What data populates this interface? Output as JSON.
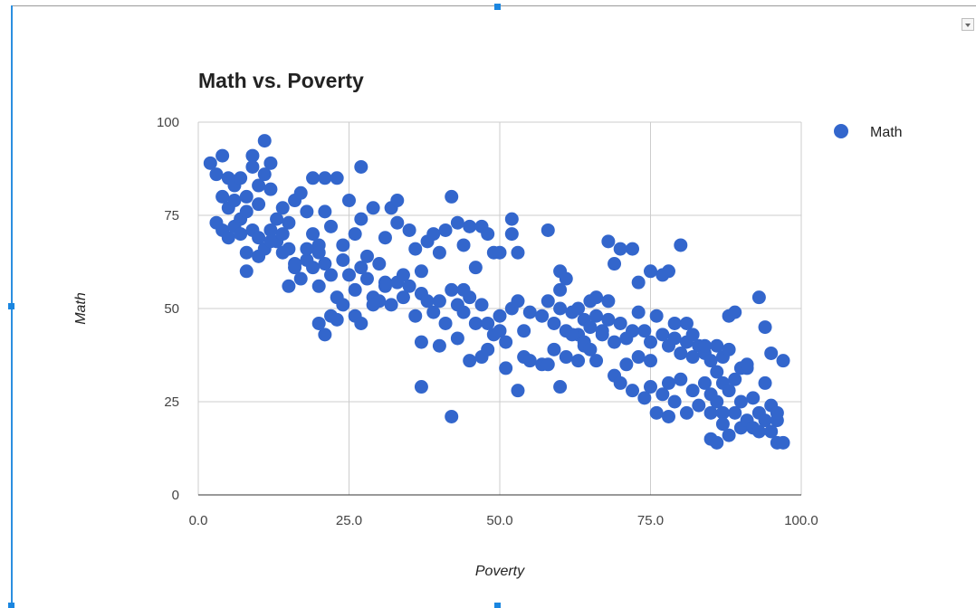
{
  "colors": {
    "series": "#3366cc",
    "grid": "#cccccc",
    "selection": "#1a86e0"
  },
  "toolbar": {
    "menu_icon": "chevron-down-icon"
  },
  "chart_data": {
    "type": "scatter",
    "title": "Math vs. Poverty",
    "xlabel": "Poverty",
    "ylabel": "Math",
    "xlim": [
      0,
      100
    ],
    "ylim": [
      0,
      100
    ],
    "x_ticks": [
      "0.0",
      "25.0",
      "50.0",
      "75.0",
      "100.0"
    ],
    "y_ticks": [
      "0",
      "25",
      "50",
      "75",
      "100"
    ],
    "grid": true,
    "legend": "right",
    "series": [
      {
        "name": "Math",
        "points": [
          [
            2,
            89
          ],
          [
            3,
            86
          ],
          [
            4,
            91
          ],
          [
            4,
            80
          ],
          [
            5,
            85
          ],
          [
            5,
            77
          ],
          [
            6,
            83
          ],
          [
            6,
            79
          ],
          [
            7,
            85
          ],
          [
            7,
            74
          ],
          [
            8,
            80
          ],
          [
            8,
            76
          ],
          [
            9,
            91
          ],
          [
            9,
            88
          ],
          [
            10,
            83
          ],
          [
            10,
            78
          ],
          [
            11,
            95
          ],
          [
            11,
            86
          ],
          [
            12,
            82
          ],
          [
            12,
            89
          ],
          [
            13,
            74
          ],
          [
            14,
            77
          ],
          [
            15,
            73
          ],
          [
            15,
            66
          ],
          [
            16,
            79
          ],
          [
            17,
            81
          ],
          [
            18,
            76
          ],
          [
            19,
            85
          ],
          [
            19,
            70
          ],
          [
            20,
            67
          ],
          [
            21,
            85
          ],
          [
            21,
            76
          ],
          [
            22,
            72
          ],
          [
            23,
            85
          ],
          [
            24,
            67
          ],
          [
            24,
            63
          ],
          [
            25,
            79
          ],
          [
            26,
            70
          ],
          [
            27,
            88
          ],
          [
            27,
            74
          ],
          [
            28,
            64
          ],
          [
            29,
            77
          ],
          [
            30,
            62
          ],
          [
            31,
            69
          ],
          [
            32,
            77
          ],
          [
            33,
            73
          ],
          [
            33,
            79
          ],
          [
            35,
            71
          ],
          [
            36,
            66
          ],
          [
            37,
            60
          ],
          [
            38,
            68
          ],
          [
            39,
            70
          ],
          [
            40,
            65
          ],
          [
            41,
            71
          ],
          [
            42,
            80
          ],
          [
            43,
            73
          ],
          [
            44,
            67
          ],
          [
            45,
            72
          ],
          [
            46,
            61
          ],
          [
            47,
            72
          ],
          [
            48,
            70
          ],
          [
            49,
            65
          ],
          [
            50,
            65
          ],
          [
            52,
            74
          ],
          [
            52,
            70
          ],
          [
            53,
            65
          ],
          [
            58,
            71
          ],
          [
            3,
            73
          ],
          [
            4,
            71
          ],
          [
            5,
            69
          ],
          [
            6,
            72
          ],
          [
            7,
            70
          ],
          [
            8,
            65
          ],
          [
            9,
            71
          ],
          [
            10,
            69
          ],
          [
            11,
            66
          ],
          [
            12,
            71
          ],
          [
            13,
            68
          ],
          [
            14,
            65
          ],
          [
            15,
            56
          ],
          [
            16,
            61
          ],
          [
            17,
            58
          ],
          [
            18,
            63
          ],
          [
            19,
            61
          ],
          [
            20,
            56
          ],
          [
            20,
            65
          ],
          [
            21,
            62
          ],
          [
            22,
            59
          ],
          [
            23,
            53
          ],
          [
            24,
            51
          ],
          [
            25,
            59
          ],
          [
            26,
            55
          ],
          [
            27,
            61
          ],
          [
            28,
            58
          ],
          [
            29,
            53
          ],
          [
            30,
            52
          ],
          [
            31,
            56
          ],
          [
            32,
            51
          ],
          [
            33,
            57
          ],
          [
            34,
            53
          ],
          [
            35,
            56
          ],
          [
            36,
            48
          ],
          [
            37,
            54
          ],
          [
            38,
            52
          ],
          [
            39,
            49
          ],
          [
            40,
            52
          ],
          [
            41,
            46
          ],
          [
            42,
            55
          ],
          [
            43,
            51
          ],
          [
            44,
            49
          ],
          [
            45,
            53
          ],
          [
            46,
            46
          ],
          [
            47,
            51
          ],
          [
            48,
            46
          ],
          [
            49,
            43
          ],
          [
            50,
            48
          ],
          [
            51,
            41
          ],
          [
            52,
            50
          ],
          [
            53,
            52
          ],
          [
            54,
            44
          ],
          [
            55,
            49
          ],
          [
            57,
            48
          ],
          [
            58,
            52
          ],
          [
            59,
            46
          ],
          [
            60,
            55
          ],
          [
            60,
            50
          ],
          [
            61,
            44
          ],
          [
            62,
            49
          ],
          [
            63,
            43
          ],
          [
            64,
            47
          ],
          [
            64,
            41
          ],
          [
            65,
            52
          ],
          [
            65,
            45
          ],
          [
            66,
            48
          ],
          [
            67,
            43
          ],
          [
            68,
            47
          ],
          [
            69,
            41
          ],
          [
            70,
            46
          ],
          [
            71,
            42
          ],
          [
            72,
            44
          ],
          [
            73,
            49
          ],
          [
            74,
            44
          ],
          [
            75,
            41
          ],
          [
            76,
            48
          ],
          [
            77,
            43
          ],
          [
            78,
            40
          ],
          [
            79,
            42
          ],
          [
            80,
            38
          ],
          [
            81,
            41
          ],
          [
            82,
            37
          ],
          [
            83,
            40
          ],
          [
            84,
            38
          ],
          [
            85,
            36
          ],
          [
            86,
            40
          ],
          [
            87,
            37
          ],
          [
            88,
            39
          ],
          [
            8,
            60
          ],
          [
            10,
            64
          ],
          [
            12,
            68
          ],
          [
            14,
            70
          ],
          [
            16,
            62
          ],
          [
            18,
            66
          ],
          [
            20,
            46
          ],
          [
            21,
            43
          ],
          [
            22,
            48
          ],
          [
            23,
            47
          ],
          [
            26,
            48
          ],
          [
            27,
            46
          ],
          [
            29,
            51
          ],
          [
            31,
            57
          ],
          [
            34,
            59
          ],
          [
            37,
            41
          ],
          [
            37,
            29
          ],
          [
            40,
            40
          ],
          [
            42,
            21
          ],
          [
            43,
            42
          ],
          [
            44,
            55
          ],
          [
            45,
            36
          ],
          [
            47,
            37
          ],
          [
            48,
            39
          ],
          [
            50,
            44
          ],
          [
            51,
            34
          ],
          [
            53,
            28
          ],
          [
            54,
            37
          ],
          [
            55,
            36
          ],
          [
            57,
            35
          ],
          [
            59,
            39
          ],
          [
            60,
            29
          ],
          [
            61,
            37
          ],
          [
            62,
            43
          ],
          [
            63,
            36
          ],
          [
            64,
            40
          ],
          [
            65,
            39
          ],
          [
            66,
            36
          ],
          [
            67,
            44
          ],
          [
            68,
            52
          ],
          [
            69,
            32
          ],
          [
            70,
            30
          ],
          [
            71,
            35
          ],
          [
            72,
            28
          ],
          [
            73,
            37
          ],
          [
            74,
            26
          ],
          [
            75,
            29
          ],
          [
            75,
            36
          ],
          [
            76,
            22
          ],
          [
            77,
            27
          ],
          [
            78,
            21
          ],
          [
            78,
            30
          ],
          [
            79,
            25
          ],
          [
            80,
            31
          ],
          [
            81,
            22
          ],
          [
            82,
            28
          ],
          [
            83,
            24
          ],
          [
            84,
            30
          ],
          [
            85,
            22
          ],
          [
            85,
            27
          ],
          [
            86,
            33
          ],
          [
            86,
            25
          ],
          [
            87,
            30
          ],
          [
            87,
            22
          ],
          [
            88,
            28
          ],
          [
            88,
            16
          ],
          [
            89,
            22
          ],
          [
            89,
            31
          ],
          [
            90,
            18
          ],
          [
            90,
            25
          ],
          [
            91,
            20
          ],
          [
            91,
            34
          ],
          [
            92,
            18
          ],
          [
            92,
            26
          ],
          [
            93,
            17
          ],
          [
            93,
            22
          ],
          [
            94,
            20
          ],
          [
            94,
            30
          ],
          [
            95,
            17
          ],
          [
            95,
            24
          ],
          [
            96,
            20
          ],
          [
            96,
            14
          ],
          [
            97,
            36
          ],
          [
            58,
            35
          ],
          [
            60,
            60
          ],
          [
            61,
            58
          ],
          [
            63,
            50
          ],
          [
            66,
            53
          ],
          [
            68,
            68
          ],
          [
            69,
            62
          ],
          [
            70,
            66
          ],
          [
            72,
            66
          ],
          [
            73,
            57
          ],
          [
            75,
            60
          ],
          [
            77,
            59
          ],
          [
            78,
            60
          ],
          [
            79,
            46
          ],
          [
            80,
            67
          ],
          [
            81,
            46
          ],
          [
            82,
            43
          ],
          [
            84,
            40
          ],
          [
            85,
            15
          ],
          [
            86,
            14
          ],
          [
            87,
            19
          ],
          [
            88,
            48
          ],
          [
            89,
            49
          ],
          [
            90,
            34
          ],
          [
            91,
            35
          ],
          [
            93,
            53
          ],
          [
            94,
            45
          ],
          [
            95,
            38
          ],
          [
            96,
            22
          ],
          [
            97,
            14
          ]
        ]
      }
    ]
  }
}
